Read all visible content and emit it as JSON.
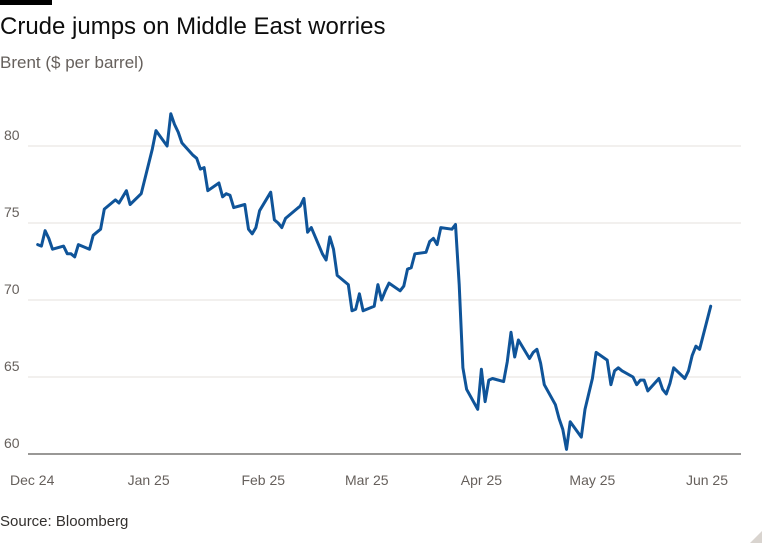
{
  "title": "Crude jumps on Middle East worries",
  "subtitle": "Brent ($ per barrel)",
  "source": "Source: Bloomberg",
  "colors": {
    "line": "#0f5499",
    "grid": "#e6e2de",
    "axis": "#33302e",
    "text": "#66605c"
  },
  "chart_data": {
    "type": "line",
    "title": "Crude jumps on Middle East worries",
    "subtitle": "Brent ($ per barrel)",
    "xlabel": "",
    "ylabel": "",
    "ylim": [
      60,
      83
    ],
    "xlim": [
      "2024-12-02",
      "2025-06-17"
    ],
    "grid": true,
    "legend": "none",
    "x_ticks": [
      {
        "date": "2024-12-01",
        "label": "Dec 24"
      },
      {
        "date": "2025-01-01",
        "label": "Jan 25"
      },
      {
        "date": "2025-02-01",
        "label": "Feb 25"
      },
      {
        "date": "2025-03-01",
        "label": "Mar 25"
      },
      {
        "date": "2025-04-01",
        "label": "Apr 25"
      },
      {
        "date": "2025-05-01",
        "label": "May 25"
      },
      {
        "date": "2025-06-01",
        "label": "Jun 25"
      }
    ],
    "y_ticks": [
      60,
      65,
      70,
      75,
      80
    ],
    "series": [
      {
        "points": [
          [
            "2024-12-02",
            73.6
          ],
          [
            "2024-12-03",
            73.5
          ],
          [
            "2024-12-04",
            74.5
          ],
          [
            "2024-12-05",
            74.0
          ],
          [
            "2024-12-06",
            73.3
          ],
          [
            "2024-12-09",
            73.5
          ],
          [
            "2024-12-10",
            73.0
          ],
          [
            "2024-12-11",
            73.0
          ],
          [
            "2024-12-12",
            72.8
          ],
          [
            "2024-12-13",
            73.6
          ],
          [
            "2024-12-16",
            73.3
          ],
          [
            "2024-12-17",
            74.2
          ],
          [
            "2024-12-18",
            74.4
          ],
          [
            "2024-12-19",
            74.6
          ],
          [
            "2024-12-20",
            75.9
          ],
          [
            "2024-12-23",
            76.5
          ],
          [
            "2024-12-24",
            76.3
          ],
          [
            "2024-12-26",
            77.1
          ],
          [
            "2024-12-27",
            76.2
          ],
          [
            "2024-12-30",
            76.9
          ],
          [
            "2025-01-02",
            79.8
          ],
          [
            "2025-01-03",
            81.0
          ],
          [
            "2025-01-06",
            80.0
          ],
          [
            "2025-01-07",
            82.1
          ],
          [
            "2025-01-08",
            81.4
          ],
          [
            "2025-01-09",
            80.9
          ],
          [
            "2025-01-10",
            80.2
          ],
          [
            "2025-01-13",
            79.4
          ],
          [
            "2025-01-14",
            79.2
          ],
          [
            "2025-01-15",
            78.5
          ],
          [
            "2025-01-16",
            78.6
          ],
          [
            "2025-01-17",
            77.1
          ],
          [
            "2025-01-20",
            77.6
          ],
          [
            "2025-01-21",
            76.7
          ],
          [
            "2025-01-22",
            76.9
          ],
          [
            "2025-01-23",
            76.8
          ],
          [
            "2025-01-24",
            76.0
          ],
          [
            "2025-01-27",
            76.2
          ],
          [
            "2025-01-28",
            74.6
          ],
          [
            "2025-01-29",
            74.3
          ],
          [
            "2025-01-30",
            74.7
          ],
          [
            "2025-01-31",
            75.8
          ],
          [
            "2025-02-03",
            77.0
          ],
          [
            "2025-02-04",
            75.2
          ],
          [
            "2025-02-05",
            75.0
          ],
          [
            "2025-02-06",
            74.7
          ],
          [
            "2025-02-07",
            75.3
          ],
          [
            "2025-02-10",
            75.9
          ],
          [
            "2025-02-11",
            76.1
          ],
          [
            "2025-02-12",
            76.6
          ],
          [
            "2025-02-13",
            74.4
          ],
          [
            "2025-02-14",
            74.7
          ],
          [
            "2025-02-17",
            73.0
          ],
          [
            "2025-02-18",
            72.6
          ],
          [
            "2025-02-19",
            74.1
          ],
          [
            "2025-02-20",
            73.3
          ],
          [
            "2025-02-21",
            71.6
          ],
          [
            "2025-02-24",
            71.0
          ],
          [
            "2025-02-25",
            69.3
          ],
          [
            "2025-02-26",
            69.4
          ],
          [
            "2025-02-27",
            70.4
          ],
          [
            "2025-02-28",
            69.3
          ],
          [
            "2025-03-03",
            69.6
          ],
          [
            "2025-03-04",
            71.0
          ],
          [
            "2025-03-05",
            70.0
          ],
          [
            "2025-03-06",
            70.6
          ],
          [
            "2025-03-07",
            71.1
          ],
          [
            "2025-03-10",
            70.6
          ],
          [
            "2025-03-11",
            70.9
          ],
          [
            "2025-03-12",
            72.0
          ],
          [
            "2025-03-13",
            72.1
          ],
          [
            "2025-03-14",
            73.0
          ],
          [
            "2025-03-17",
            73.1
          ],
          [
            "2025-03-18",
            73.8
          ],
          [
            "2025-03-19",
            74.0
          ],
          [
            "2025-03-20",
            73.6
          ],
          [
            "2025-03-21",
            74.7
          ],
          [
            "2025-03-24",
            74.6
          ],
          [
            "2025-03-25",
            74.9
          ],
          [
            "2025-03-26",
            71.0
          ],
          [
            "2025-03-27",
            65.6
          ],
          [
            "2025-03-28",
            64.2
          ],
          [
            "2025-03-31",
            62.9
          ],
          [
            "2025-04-01",
            65.5
          ],
          [
            "2025-04-02",
            63.4
          ],
          [
            "2025-04-03",
            64.8
          ],
          [
            "2025-04-04",
            64.9
          ],
          [
            "2025-04-07",
            64.7
          ],
          [
            "2025-04-08",
            66.0
          ],
          [
            "2025-04-09",
            67.9
          ],
          [
            "2025-04-10",
            66.3
          ],
          [
            "2025-04-11",
            67.4
          ],
          [
            "2025-04-14",
            66.2
          ],
          [
            "2025-04-15",
            66.6
          ],
          [
            "2025-04-16",
            66.8
          ],
          [
            "2025-04-17",
            65.9
          ],
          [
            "2025-04-18",
            64.5
          ],
          [
            "2025-04-21",
            63.2
          ],
          [
            "2025-04-22",
            62.3
          ],
          [
            "2025-04-23",
            61.6
          ],
          [
            "2025-04-24",
            60.3
          ],
          [
            "2025-04-25",
            62.1
          ],
          [
            "2025-04-28",
            61.1
          ],
          [
            "2025-04-29",
            62.9
          ],
          [
            "2025-04-30",
            63.9
          ],
          [
            "2025-05-01",
            64.9
          ],
          [
            "2025-05-02",
            66.6
          ],
          [
            "2025-05-05",
            66.1
          ],
          [
            "2025-05-06",
            64.5
          ],
          [
            "2025-05-07",
            65.4
          ],
          [
            "2025-05-08",
            65.6
          ],
          [
            "2025-05-09",
            65.4
          ],
          [
            "2025-05-12",
            65.0
          ],
          [
            "2025-05-13",
            64.5
          ],
          [
            "2025-05-14",
            64.8
          ],
          [
            "2025-05-15",
            64.8
          ],
          [
            "2025-05-16",
            64.1
          ],
          [
            "2025-05-19",
            64.9
          ],
          [
            "2025-05-20",
            64.2
          ],
          [
            "2025-05-21",
            63.9
          ],
          [
            "2025-05-22",
            64.6
          ],
          [
            "2025-05-23",
            65.6
          ],
          [
            "2025-05-26",
            64.9
          ],
          [
            "2025-05-27",
            65.4
          ],
          [
            "2025-05-28",
            66.4
          ],
          [
            "2025-05-29",
            67.0
          ],
          [
            "2025-05-30",
            66.8
          ],
          [
            "2025-06-02",
            69.6
          ]
        ]
      }
    ]
  }
}
